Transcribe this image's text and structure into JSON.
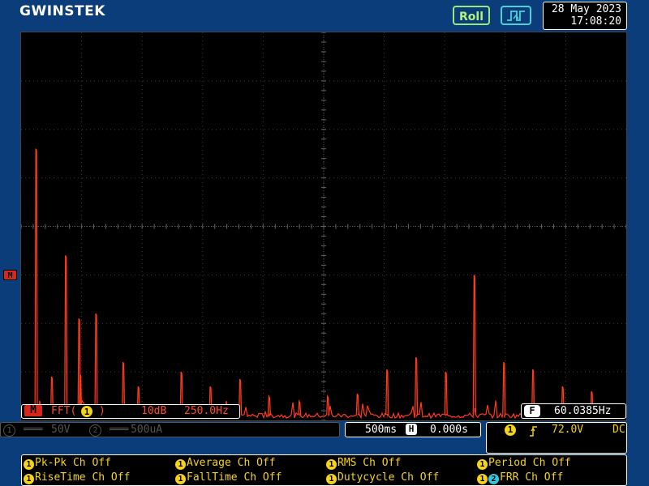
{
  "header": {
    "brand": "GWINSTEK",
    "mode_button": "Roll",
    "date": "28 May 2023",
    "time": "17:08:20"
  },
  "colors": {
    "background": "#0a3d7a",
    "trace": "#ff3b1f",
    "grid": "#3a3a3a",
    "ch1": "#f5d21c",
    "ch2": "#36c6e0"
  },
  "math_marker": "M",
  "fft_status": {
    "badge": "M",
    "label_pre": "FFT(",
    "channel": "1",
    "label_post": ")",
    "scale": "10dB",
    "span": "250.0Hz"
  },
  "frequency_counter": {
    "badge": "F",
    "value": "60.0385Hz"
  },
  "channels": {
    "ch1_num": "1",
    "ch1_coupling": "═══",
    "ch1_scale": "50V",
    "ch2_num": "2",
    "ch2_coupling": "═══",
    "ch2_scale": "500uA"
  },
  "timebase": {
    "scale": "500ms",
    "h_badge": "H",
    "position": "0.000s"
  },
  "trigger": {
    "channel": "1",
    "slope_icon": "rising-edge-icon",
    "level": "72.0V",
    "coupling": "DC"
  },
  "measurements": [
    {
      "ch": "1",
      "label": "Pk-Pk Ch Off"
    },
    {
      "ch": "1",
      "label": "Average Ch Off"
    },
    {
      "ch": "1",
      "label": "RMS Ch Off"
    },
    {
      "ch": "1",
      "label": "Period Ch Off"
    },
    {
      "ch": "1",
      "label": "RiseTime Ch Off"
    },
    {
      "ch": "1",
      "label": "FallTime Ch Off"
    },
    {
      "ch": "1",
      "label": "Dutycycle Ch Off"
    },
    {
      "ch": "1",
      "ch_b": "2",
      "label": "FRR Ch Off"
    }
  ],
  "chart_data": {
    "type": "line",
    "x_divisions": 10,
    "y_divisions": 8,
    "peaks": [
      {
        "x_div": 0.25,
        "y_div": 5.6
      },
      {
        "x_div": 0.74,
        "y_div": 3.4
      },
      {
        "x_div": 0.96,
        "y_div": 2.1
      },
      {
        "x_div": 1.24,
        "y_div": 2.2
      },
      {
        "x_div": 1.69,
        "y_div": 1.2
      },
      {
        "x_div": 0.51,
        "y_div": 0.9
      },
      {
        "x_div": 0.98,
        "y_div": 0.95
      },
      {
        "x_div": 1.94,
        "y_div": 0.7
      },
      {
        "x_div": 2.65,
        "y_div": 1.0
      },
      {
        "x_div": 3.13,
        "y_div": 0.7
      },
      {
        "x_div": 3.62,
        "y_div": 0.85
      },
      {
        "x_div": 4.1,
        "y_div": 0.5
      },
      {
        "x_div": 4.6,
        "y_div": 0.4
      },
      {
        "x_div": 5.07,
        "y_div": 0.5
      },
      {
        "x_div": 5.56,
        "y_div": 0.55
      },
      {
        "x_div": 6.05,
        "y_div": 1.05
      },
      {
        "x_div": 6.53,
        "y_div": 1.3
      },
      {
        "x_div": 7.02,
        "y_div": 1.0
      },
      {
        "x_div": 7.49,
        "y_div": 3.0
      },
      {
        "x_div": 7.98,
        "y_div": 1.2
      },
      {
        "x_div": 8.46,
        "y_div": 1.05
      },
      {
        "x_div": 8.95,
        "y_div": 0.7
      },
      {
        "x_div": 9.43,
        "y_div": 0.6
      }
    ]
  }
}
